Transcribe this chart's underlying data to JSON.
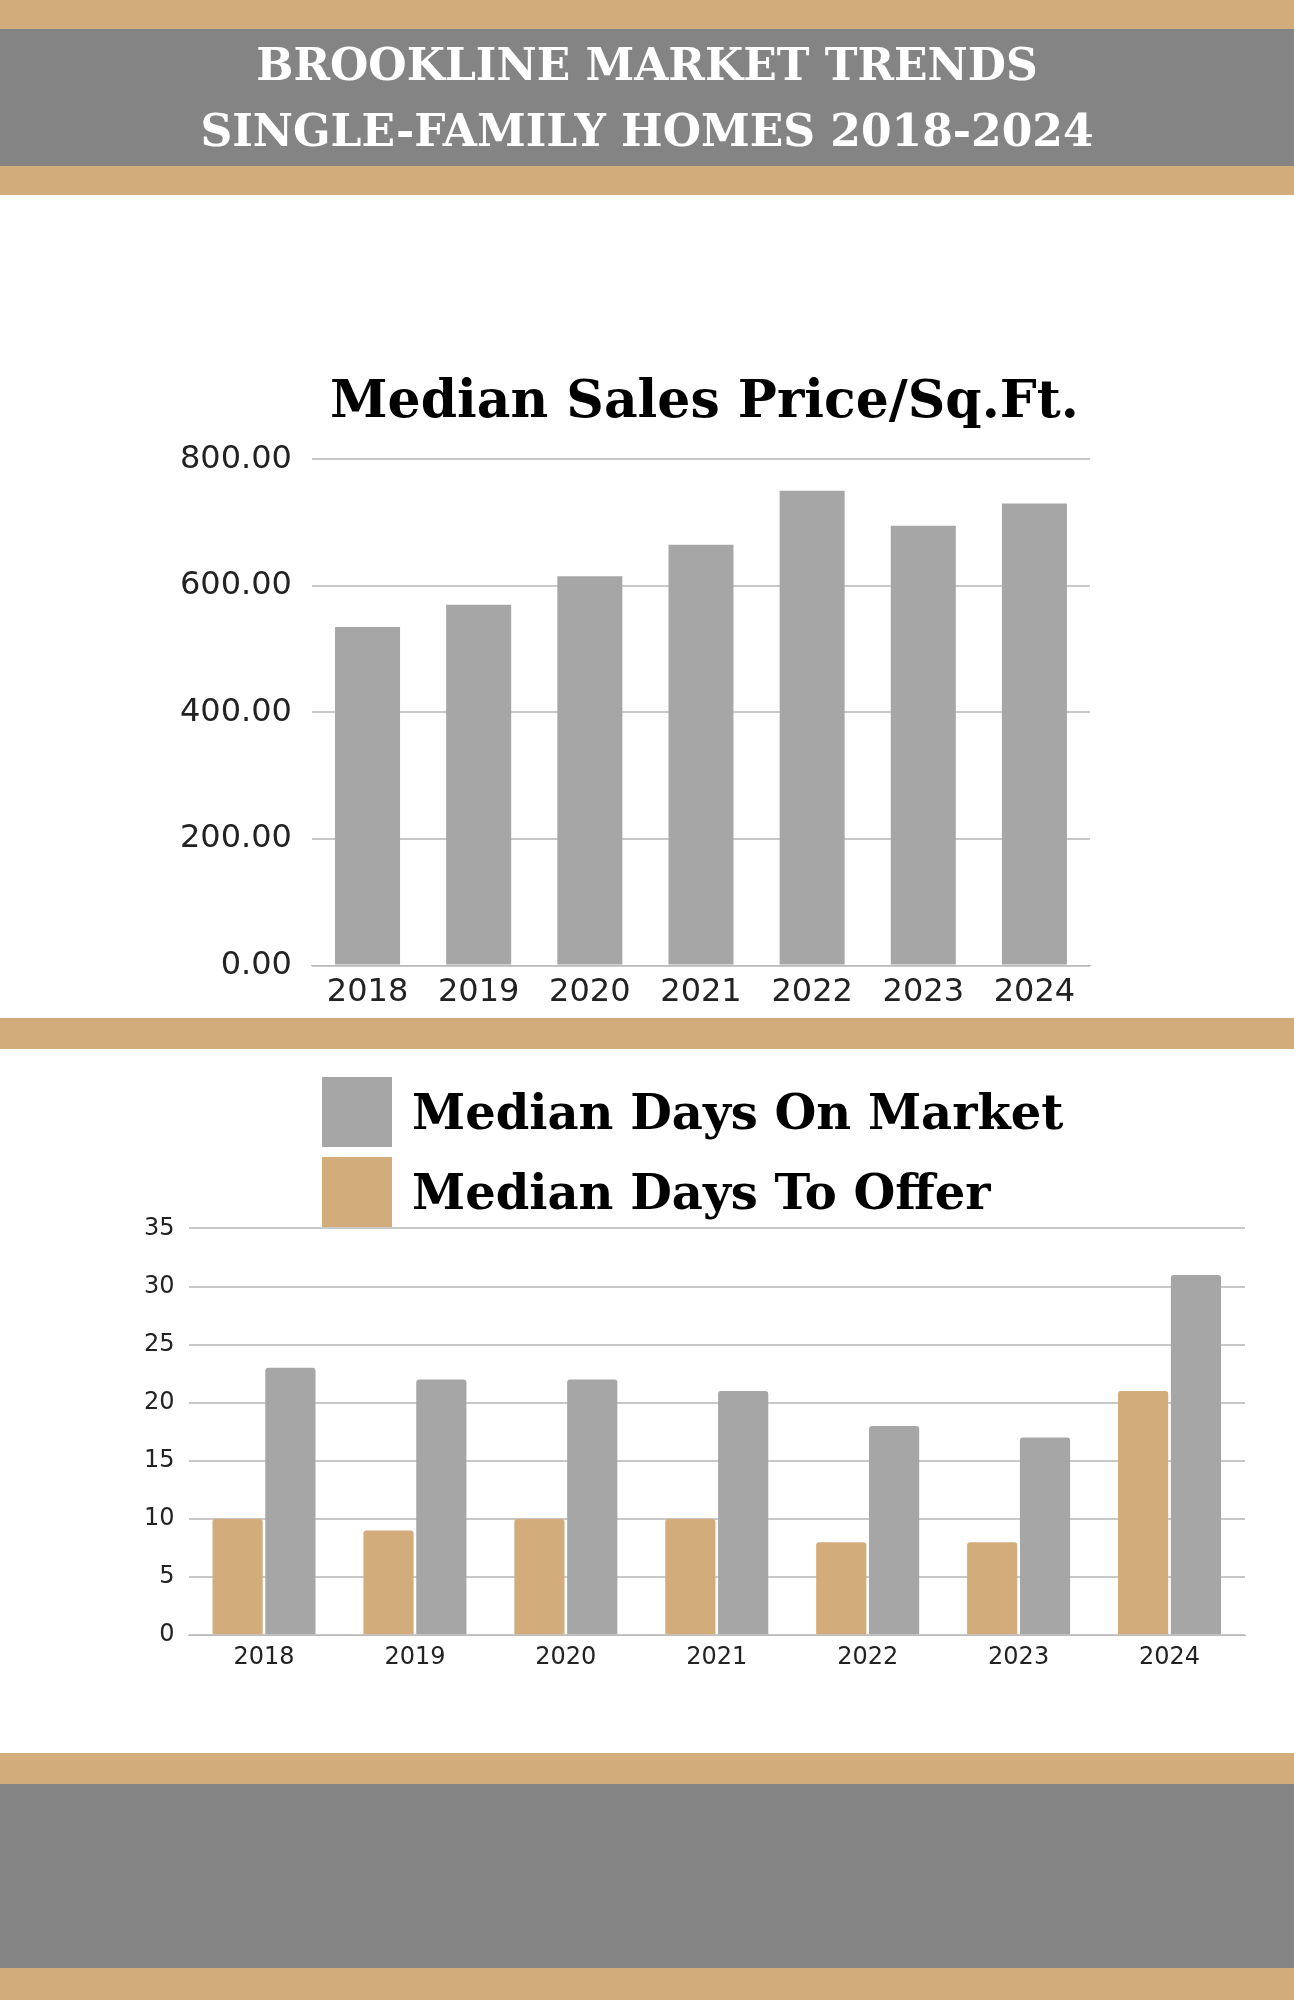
{
  "chart_data": [
    {
      "type": "bar",
      "title": "BROOKLINE MARKET TRENDS\nSINGLE-FAMILY HOMES 2018-2024",
      "subtitle": "Median Sales Price/Sq.Ft.",
      "categories": [
        "2018",
        "2019",
        "2020",
        "2021",
        "2022",
        "2023",
        "2024"
      ],
      "values": [
        535,
        570,
        615,
        665,
        750,
        695,
        730
      ],
      "color": "#a6a6a6",
      "ylim": [
        0,
        800
      ],
      "yticks": [
        {
          "value": 0,
          "label": "0.00"
        },
        {
          "value": 200,
          "label": "200.00"
        },
        {
          "value": 400,
          "label": "400.00"
        },
        {
          "value": 600,
          "label": "600.00"
        },
        {
          "value": 800,
          "label": "800.00"
        }
      ],
      "grid": "y",
      "legend": false
    },
    {
      "type": "bar",
      "categories": [
        "2018",
        "2019",
        "2020",
        "2021",
        "2022",
        "2023",
        "2024"
      ],
      "series": [
        {
          "name": "Median Days To Offer",
          "color": "#d2ac7a",
          "values": [
            10,
            9,
            10,
            10,
            8,
            8,
            21
          ]
        },
        {
          "name": "Median Days On Market",
          "color": "#a6a6a6",
          "values": [
            23,
            22,
            22,
            21,
            18,
            17,
            31
          ]
        }
      ],
      "ylim": [
        0,
        35
      ],
      "yticks": [
        0,
        5,
        10,
        15,
        20,
        25,
        30,
        35
      ],
      "grid": "y",
      "legend": "top"
    }
  ]
}
